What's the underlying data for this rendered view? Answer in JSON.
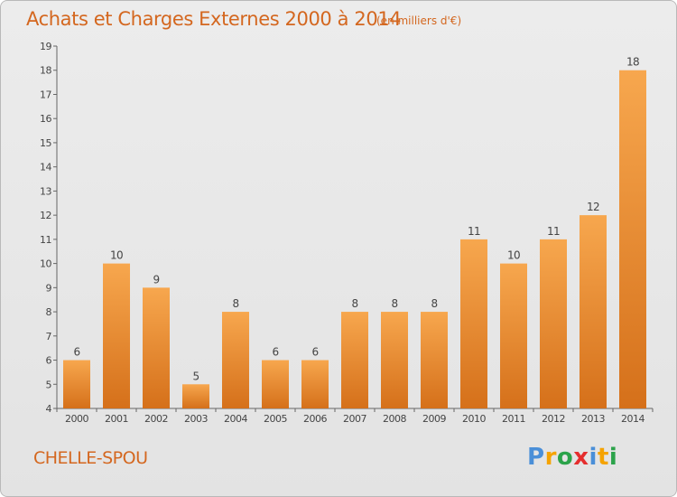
{
  "header": {
    "title": "Achats et Charges Externes 2000 à 2014",
    "unit": "(en milliers d'€)"
  },
  "footer": {
    "place": "CHELLE-SPOU",
    "logo": [
      "P",
      "r",
      "o",
      "x",
      "i",
      "t",
      "i"
    ],
    "logo_colors": [
      "#4a8fd8",
      "#f5a300",
      "#2ba34a",
      "#e52e2e",
      "#4a8fd8",
      "#f5a300",
      "#2ba34a"
    ]
  },
  "colors": {
    "bar_light": "#f7a74e",
    "bar_dark": "#d5701a",
    "accent": "#d4671f"
  },
  "chart_data": {
    "type": "bar",
    "categories": [
      "2000",
      "2001",
      "2002",
      "2003",
      "2004",
      "2005",
      "2006",
      "2007",
      "2008",
      "2009",
      "2010",
      "2011",
      "2012",
      "2013",
      "2014"
    ],
    "values": [
      6,
      10,
      9,
      5,
      8,
      6,
      6,
      8,
      8,
      8,
      11,
      10,
      11,
      12,
      18
    ],
    "title": "Achats et Charges Externes 2000 à 2014",
    "ylim": [
      4,
      19
    ],
    "yticks": [
      4,
      5,
      6,
      7,
      8,
      9,
      10,
      11,
      12,
      13,
      14,
      15,
      16,
      17,
      18,
      19
    ],
    "grid": false
  }
}
